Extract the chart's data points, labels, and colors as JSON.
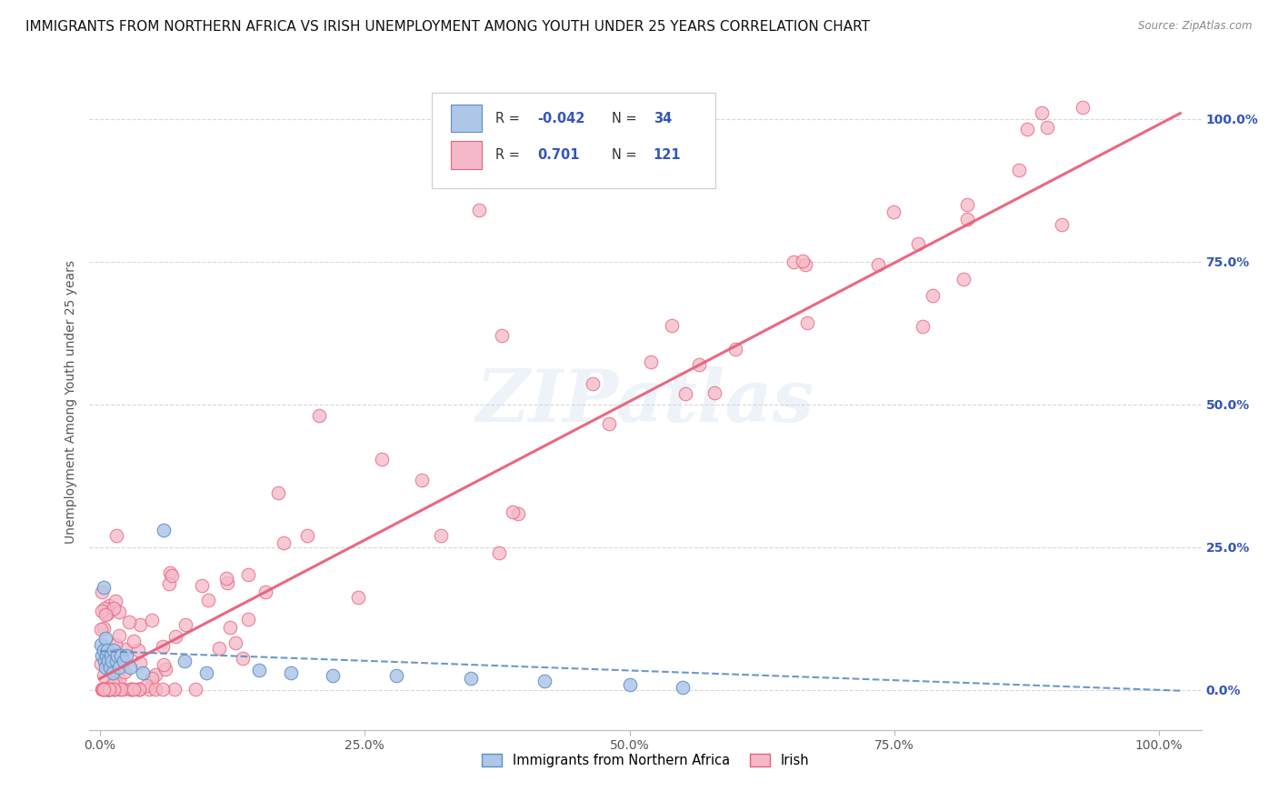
{
  "title": "IMMIGRANTS FROM NORTHERN AFRICA VS IRISH UNEMPLOYMENT AMONG YOUTH UNDER 25 YEARS CORRELATION CHART",
  "source": "Source: ZipAtlas.com",
  "ylabel": "Unemployment Among Youth under 25 years",
  "xtick_labels": [
    "0.0%",
    "25.0%",
    "50.0%",
    "75.0%",
    "100.0%"
  ],
  "xtick_vals": [
    0.0,
    0.25,
    0.5,
    0.75,
    1.0
  ],
  "ytick_labels_right": [
    "0.0%",
    "25.0%",
    "50.0%",
    "75.0%",
    "100.0%"
  ],
  "ytick_vals": [
    0.0,
    0.25,
    0.5,
    0.75,
    1.0
  ],
  "watermark": "ZIPatlas",
  "legend_r1": "-0.042",
  "legend_n1": "34",
  "legend_r2": "0.701",
  "legend_n2": "121",
  "legend_label1": "Immigrants from Northern Africa",
  "legend_label2": "Irish",
  "series1_color": "#aec6e8",
  "series2_color": "#f4b8c8",
  "line1_color": "#5b8ec4",
  "line2_color": "#e8607a",
  "r_color": "#3355bb",
  "background_color": "#ffffff",
  "grid_color": "#d8d8d8",
  "title_fontsize": 11,
  "axis_label_fontsize": 10,
  "tick_fontsize": 10,
  "xlim": [
    -0.01,
    1.04
  ],
  "ylim": [
    -0.07,
    1.08
  ]
}
